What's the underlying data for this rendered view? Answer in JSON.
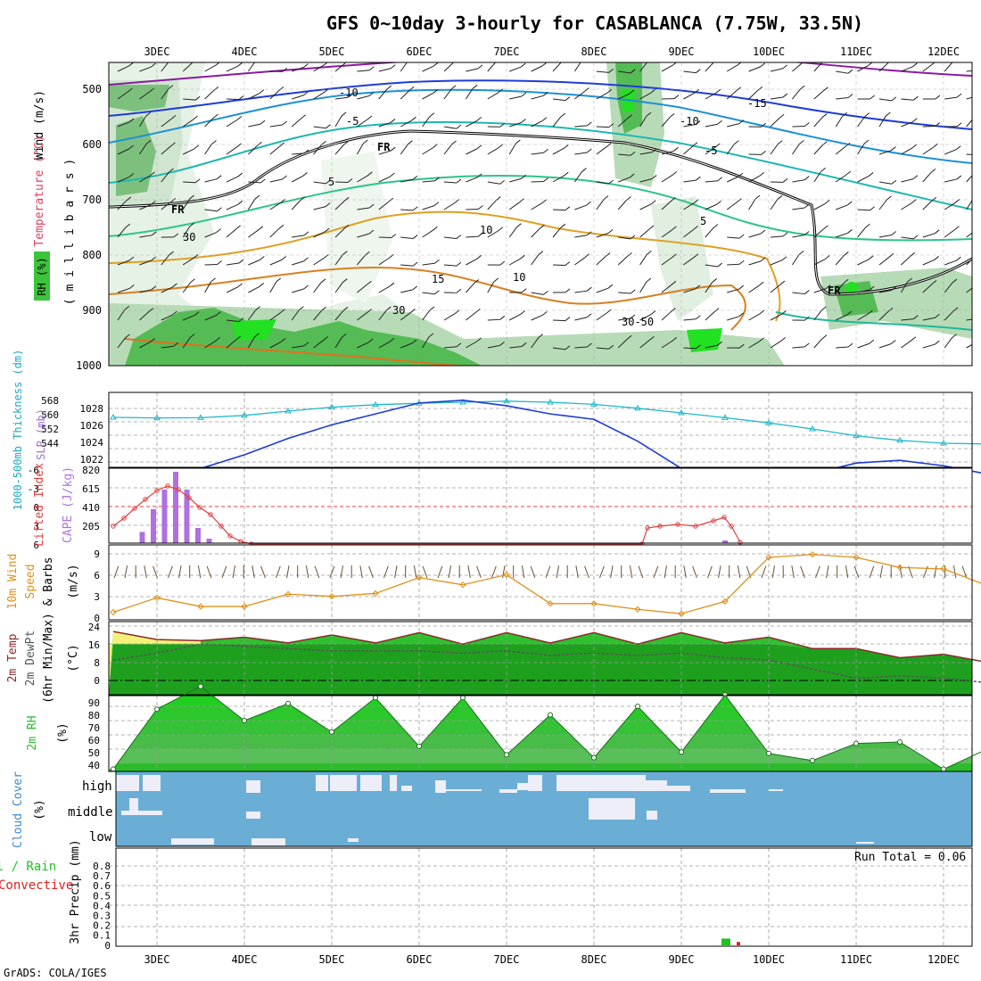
{
  "title": "GFS 0~10day 3-hourly for CASABLANCA (7.75W, 33.5N)",
  "footer": "GrADS: COLA/IGES",
  "dates": [
    "3DEC",
    "4DEC",
    "5DEC",
    "6DEC",
    "7DEC",
    "8DEC",
    "9DEC",
    "10DEC",
    "11DEC",
    "12DEC"
  ],
  "colors": {
    "rh_green": "#3cc43c",
    "rh_light": "#dff0df",
    "slp": "#1c3cd0",
    "thick": "#20b8c8",
    "li": "#e04040",
    "cape": "#b070e0",
    "wind10": "#e0901c",
    "temp": "#8b2a2a",
    "rh2m": "#2dbb2d",
    "cloud": "#6aaed6",
    "precip_total": "#22c022",
    "precip_conv": "#e02020"
  },
  "panels": {
    "upper": {
      "ylabels": [
        "Wind (m/s)",
        "Temperature (°C)",
        "( m i l l i b a r s )",
        "RH (%)"
      ],
      "yticks": [
        "500",
        "600",
        "700",
        "800",
        "900",
        "1000"
      ],
      "contour_labels": [
        "-10",
        "-15",
        "-5",
        "-10",
        "-5",
        "5",
        "5",
        "10",
        "15",
        "FR",
        "FR",
        "FR",
        "30",
        "10",
        "30",
        "50",
        "-15"
      ]
    },
    "slp": {
      "label_left": "1000-500mb Thickness (dm)",
      "label_right": "SLP (mb)",
      "thick_ticks": [
        "568",
        "560",
        "552",
        "544"
      ],
      "slp_ticks": [
        "1028",
        "1026",
        "1024",
        "1022"
      ]
    },
    "cape": {
      "label_left": "Lifted Index",
      "label_right": "CAPE (J/kg)",
      "li_ticks": [
        "-6",
        "-3",
        "0",
        "3",
        "6"
      ],
      "cape_ticks": [
        "820",
        "615",
        "410",
        "205"
      ]
    },
    "wind10": {
      "label_1": "10m Wind",
      "label_2": "Speed",
      "label_3": "& Barbs",
      "unit": "(m/s)",
      "ticks": [
        "9",
        "6",
        "3",
        "0"
      ]
    },
    "temp2m": {
      "label_1": "2m Temp",
      "label_2": "2m DewPt",
      "label_3": "(6hr Min/Max)",
      "unit": "(°C)",
      "ticks": [
        "24",
        "16",
        "8",
        "0"
      ]
    },
    "rh2m": {
      "label": "2m RH",
      "unit": "(%)",
      "ticks": [
        "90",
        "80",
        "70",
        "60",
        "50",
        "40"
      ]
    },
    "cloud": {
      "label": "Cloud Cover",
      "unit": "(%)",
      "levels": [
        "high",
        "middle",
        "low"
      ]
    },
    "precip": {
      "label_total": "Total / Rain",
      "label_conv": "Convective",
      "label_y": "3hr Precip (mm)",
      "ticks": [
        "0.8",
        "0.7",
        "0.6",
        "0.5",
        "0.4",
        "0.3",
        "0.2",
        "0.1",
        "0"
      ],
      "run_total": "Run Total = 0.06"
    }
  },
  "chart_data": [
    {
      "type": "line",
      "title": "SLP / 1000-500mb Thickness",
      "x": [
        "2DEC12",
        "3DEC00",
        "3DEC12",
        "4DEC00",
        "4DEC12",
        "5DEC00",
        "5DEC12",
        "6DEC00",
        "6DEC12",
        "7DEC00",
        "7DEC12",
        "8DEC00",
        "8DEC12",
        "9DEC00",
        "9DEC12",
        "10DEC00",
        "10DEC12",
        "11DEC00",
        "11DEC12",
        "12DEC00",
        "12DEC06"
      ],
      "series": [
        {
          "name": "SLP (mb)",
          "values": [
            1023.4,
            1022.8,
            1023.6,
            1024.6,
            1025.8,
            1026.8,
            1027.6,
            1028.4,
            1028.6,
            1028.2,
            1027.6,
            1027.2,
            1025.6,
            1023.6,
            1022.8,
            1023.6,
            1023.2,
            1024.0,
            1024.2,
            1023.8,
            1023.2
          ]
        },
        {
          "name": "1000-500mb Thickness (dm)",
          "values": [
            558.5,
            558.2,
            558.3,
            559.6,
            562.0,
            564.2,
            565.6,
            566.4,
            567.0,
            567.6,
            567.0,
            565.8,
            563.6,
            561.0,
            558.3,
            555.4,
            552.0,
            548.2,
            545.6,
            544.0,
            543.6
          ]
        }
      ]
    },
    {
      "type": "bar",
      "title": "CAPE (J/kg)",
      "x": [
        "2DEC18",
        "2DEC21",
        "3DEC00",
        "3DEC03",
        "3DEC06",
        "3DEC09",
        "3DEC12",
        "3DEC15"
      ],
      "values": [
        0,
        125,
        380,
        600,
        800,
        600,
        170,
        50
      ]
    },
    {
      "type": "line",
      "title": "10m Wind Speed (m/s)",
      "x": [
        "2DEC12",
        "3DEC00",
        "3DEC12",
        "4DEC00",
        "4DEC12",
        "5DEC00",
        "5DEC12",
        "6DEC00",
        "6DEC12",
        "7DEC00",
        "7DEC12",
        "8DEC00",
        "8DEC12",
        "9DEC00",
        "9DEC12",
        "10DEC00",
        "10DEC12",
        "11DEC00",
        "11DEC12",
        "12DEC00",
        "12DEC06"
      ],
      "values": [
        0.8,
        2.8,
        1.6,
        1.6,
        3.3,
        3.0,
        3.4,
        5.6,
        4.6,
        6.0,
        2.0,
        2.0,
        1.2,
        0.6,
        2.3,
        8.4,
        8.8,
        8.4,
        7.0,
        6.8,
        4.5
      ]
    },
    {
      "type": "line",
      "title": "2m Temp / DewPt (°C)",
      "x": [
        "2DEC12",
        "3DEC00",
        "3DEC12",
        "4DEC00",
        "4DEC12",
        "5DEC00",
        "5DEC12",
        "6DEC00",
        "6DEC12",
        "7DEC00",
        "7DEC12",
        "8DEC00",
        "8DEC12",
        "9DEC00",
        "9DEC12",
        "10DEC00",
        "10DEC12",
        "11DEC00",
        "11DEC12",
        "12DEC00",
        "12DEC06"
      ],
      "series": [
        {
          "name": "2m Temp",
          "values": [
            21.5,
            18,
            17.5,
            19,
            16.5,
            20,
            16.5,
            21,
            16,
            21,
            16.5,
            21,
            16,
            21,
            16.5,
            19,
            14,
            14,
            10,
            11.5,
            8
          ]
        },
        {
          "name": "2m DewPt",
          "values": [
            9,
            12,
            16,
            15,
            14,
            13,
            13,
            13,
            12,
            13,
            11,
            12,
            11,
            12,
            10,
            9,
            5,
            1,
            2,
            1,
            -1
          ]
        }
      ]
    },
    {
      "type": "area",
      "title": "2m RH (%)",
      "x": [
        "2DEC12",
        "3DEC00",
        "3DEC12",
        "4DEC00",
        "4DEC12",
        "5DEC00",
        "5DEC12",
        "6DEC00",
        "6DEC12",
        "7DEC00",
        "7DEC12",
        "8DEC00",
        "8DEC12",
        "9DEC00",
        "9DEC12",
        "10DEC00",
        "10DEC12",
        "11DEC00",
        "11DEC12",
        "12DEC00",
        "12DEC06"
      ],
      "values": [
        36,
        78,
        94,
        70,
        82,
        62,
        86,
        52,
        86,
        46,
        74,
        44,
        80,
        48,
        88,
        47,
        42,
        54,
        55,
        36,
        50
      ]
    },
    {
      "type": "bar",
      "title": "3hr Precip (mm)",
      "x": [
        "9DEC12",
        "9DEC15"
      ],
      "series": [
        {
          "name": "Total / Rain",
          "values": [
            0.06,
            0
          ]
        },
        {
          "name": "Convective",
          "values": [
            0.0,
            0.03
          ]
        }
      ],
      "ylim": [
        0,
        0.8
      ]
    }
  ]
}
